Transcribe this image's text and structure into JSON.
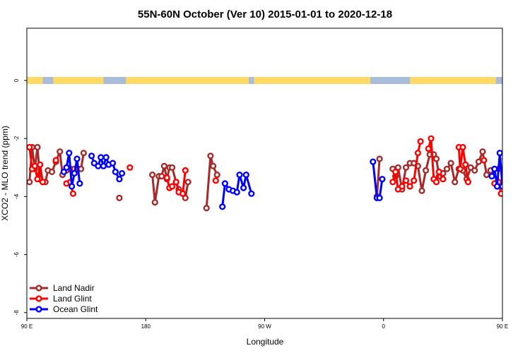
{
  "chart_data": {
    "type": "line",
    "title": "55N-60N October (Ver 10)   2015-01-01 to 2020-12-18",
    "xlabel": "Longitude",
    "ylabel": "XCO2 - MLO trend (ppm)",
    "xlim": [
      90,
      450
    ],
    "ylim": [
      -8.2,
      1.8
    ],
    "x_ticks": [
      {
        "value": 90,
        "label": "90 E"
      },
      {
        "value": 180,
        "label": "180"
      },
      {
        "value": 270,
        "label": "90 W"
      },
      {
        "value": 360,
        "label": "0"
      },
      {
        "value": 450,
        "label": "90 E"
      },
      {
        "value": 540,
        "label": "180"
      }
    ],
    "y_ticks": [
      {
        "value": 0,
        "label": "0"
      },
      {
        "value": -2,
        "label": "-2"
      },
      {
        "value": -4,
        "label": "-4"
      },
      {
        "value": -6,
        "label": "-6"
      },
      {
        "value": -8,
        "label": "-8"
      }
    ],
    "legend_position": "bottom-left",
    "land_ocean_strip": {
      "y": 0,
      "land_color": "#FFD966",
      "ocean_color": "#A9BCDA",
      "land_segments": [
        [
          90,
          102
        ],
        [
          110,
          148
        ],
        [
          165,
          258
        ],
        [
          262,
          350
        ],
        [
          380,
          445
        ],
        [
          470,
          540
        ]
      ]
    },
    "series": [
      {
        "name": "Land Nadir",
        "color": "#A52A2A",
        "points": [
          [
            92,
            -3.5
          ],
          [
            94,
            -2.3
          ],
          [
            96,
            -3.05
          ],
          [
            98,
            -2.3
          ],
          [
            100,
            -3.4
          ],
          [
            102,
            -3.5
          ],
          [
            104,
            -3.5
          ],
          [
            106,
            -3.1
          ],
          [
            109,
            -3.15
          ],
          [
            112,
            -2.8
          ],
          [
            115,
            -2.45
          ],
          [
            117,
            -3.25
          ],
          [
            120,
            -3.1
          ],
          [
            123,
            -3.05
          ],
          [
            126,
            -3.05
          ],
          [
            129,
            -3.05
          ],
          [
            131,
            -3.05
          ],
          [
            133,
            -2.5
          ],
          [
            null,
            null
          ],
          [
            160,
            -4.05
          ],
          [
            null,
            null
          ],
          [
            185,
            -3.25
          ],
          [
            187,
            -4.2
          ],
          [
            190,
            -3.3
          ],
          [
            192,
            -3.3
          ],
          [
            194,
            -2.95
          ],
          [
            196,
            -3.4
          ],
          [
            198,
            -3.0
          ],
          [
            200,
            -3.0
          ],
          [
            203,
            -3.5
          ],
          [
            205,
            -3.75
          ],
          [
            208,
            -3.9
          ],
          [
            210,
            -4.05
          ],
          [
            212,
            -3.5
          ],
          [
            null,
            null
          ],
          [
            226,
            -4.4
          ],
          [
            229,
            -2.6
          ],
          [
            231,
            -2.95
          ],
          [
            234,
            -3.25
          ],
          [
            null,
            null
          ],
          [
            355,
            -4.0
          ],
          [
            357,
            -2.7
          ],
          [
            null,
            null
          ],
          [
            367,
            -3.05
          ],
          [
            369,
            -3.3
          ],
          [
            371,
            -3.0
          ],
          [
            374,
            -3.75
          ],
          [
            377,
            -3.0
          ],
          [
            380,
            -2.85
          ],
          [
            383,
            -2.85
          ],
          [
            386,
            -2.95
          ],
          [
            389,
            -3.8
          ],
          [
            392,
            -3.1
          ],
          [
            395,
            -2.55
          ],
          [
            398,
            -2.55
          ],
          [
            400,
            -2.7
          ],
          [
            402,
            -3.3
          ],
          [
            405,
            -3.2
          ],
          [
            408,
            -3.05
          ],
          [
            411,
            -2.85
          ],
          [
            414,
            -3.5
          ],
          [
            417,
            -3.05
          ],
          [
            420,
            -3.1
          ],
          [
            423,
            -3.4
          ],
          [
            426,
            -3.0
          ],
          [
            429,
            -3.1
          ],
          [
            432,
            -2.8
          ],
          [
            435,
            -2.45
          ],
          [
            438,
            -3.25
          ],
          [
            441,
            -3.1
          ],
          [
            444,
            -3.05
          ],
          [
            447,
            -3.05
          ],
          [
            450,
            -3.05
          ],
          [
            452,
            -2.5
          ]
        ]
      },
      {
        "name": "Land Glint",
        "color": "#FF0000",
        "points": [
          [
            92,
            -2.3
          ],
          [
            94,
            -3.05
          ],
          [
            96,
            -2.95
          ],
          [
            98,
            -3.4
          ],
          [
            100,
            -2.9
          ],
          [
            102,
            -3.5
          ],
          [
            null,
            null
          ],
          [
            112,
            -2.75
          ],
          [
            null,
            null
          ],
          [
            120,
            -3.55
          ],
          [
            123,
            -3.5
          ],
          [
            125,
            -3.9
          ],
          [
            null,
            null
          ],
          [
            168,
            -3.0
          ],
          [
            null,
            null
          ],
          [
            196,
            -3.35
          ],
          [
            198,
            -3.7
          ],
          [
            200,
            -3.65
          ],
          [
            203,
            -3.5
          ],
          [
            205,
            -3.85
          ],
          [
            208,
            -3.9
          ],
          [
            210,
            -3.1
          ],
          [
            null,
            null
          ],
          [
            233,
            -3.45
          ],
          [
            null,
            null
          ],
          [
            367,
            -3.5
          ],
          [
            369,
            -3.15
          ],
          [
            371,
            -3.75
          ],
          [
            374,
            -3.65
          ],
          [
            377,
            -3.45
          ],
          [
            380,
            -3.65
          ],
          [
            383,
            -3.45
          ],
          [
            386,
            -2.5
          ],
          [
            388,
            -2.1
          ],
          [
            null,
            null
          ],
          [
            394,
            -2.35
          ],
          [
            396,
            -2.0
          ],
          [
            398,
            -3.4
          ],
          [
            400,
            -3.5
          ],
          [
            402,
            -3.15
          ],
          [
            405,
            -3.4
          ],
          [
            null,
            null
          ],
          [
            417,
            -2.3
          ],
          [
            418,
            -3.05
          ],
          [
            420,
            -2.3
          ],
          [
            422,
            -2.9
          ],
          [
            424,
            -3.5
          ],
          [
            null,
            null
          ],
          [
            436,
            -2.75
          ],
          [
            null,
            null
          ],
          [
            444,
            -3.55
          ],
          [
            447,
            -3.5
          ],
          [
            449,
            -3.9
          ],
          [
            null,
            null
          ],
          [
            452,
            -3.55
          ]
        ]
      },
      {
        "name": "Ocean Glint",
        "color": "#0000FF",
        "points": [
          [
            118,
            -3.15
          ],
          [
            120,
            -3.0
          ],
          [
            122,
            -2.5
          ],
          [
            124,
            -3.65
          ],
          [
            126,
            -3.2
          ],
          [
            128,
            -2.7
          ],
          [
            130,
            -3.55
          ],
          [
            null,
            null
          ],
          [
            139,
            -2.6
          ],
          [
            141,
            -2.85
          ],
          [
            144,
            -2.95
          ],
          [
            146,
            -2.65
          ],
          [
            148,
            -2.95
          ],
          [
            150,
            -2.65
          ],
          [
            152,
            -2.9
          ],
          [
            155,
            -2.85
          ],
          [
            157,
            -3.15
          ],
          [
            160,
            -3.4
          ],
          [
            162,
            -3.2
          ],
          [
            null,
            null
          ],
          [
            238,
            -4.35
          ],
          [
            240,
            -3.55
          ],
          [
            243,
            -3.75
          ],
          [
            246,
            -3.8
          ],
          [
            249,
            -3.85
          ],
          [
            251,
            -3.25
          ],
          [
            254,
            -3.7
          ],
          [
            256,
            -3.25
          ],
          [
            260,
            -3.9
          ],
          [
            null,
            null
          ],
          [
            352,
            -2.8
          ],
          [
            355,
            -4.05
          ],
          [
            357,
            -4.05
          ],
          [
            359,
            -3.4
          ],
          [
            null,
            null
          ],
          [
            442,
            -3.3
          ],
          [
            444,
            -3.05
          ],
          [
            446,
            -3.65
          ],
          [
            448,
            -2.5
          ],
          [
            450,
            -3.65
          ],
          [
            452,
            -2.7
          ],
          [
            455,
            -3.55
          ],
          [
            null,
            null
          ],
          [
            462,
            -2.6
          ],
          [
            465,
            -2.85
          ]
        ]
      }
    ]
  }
}
